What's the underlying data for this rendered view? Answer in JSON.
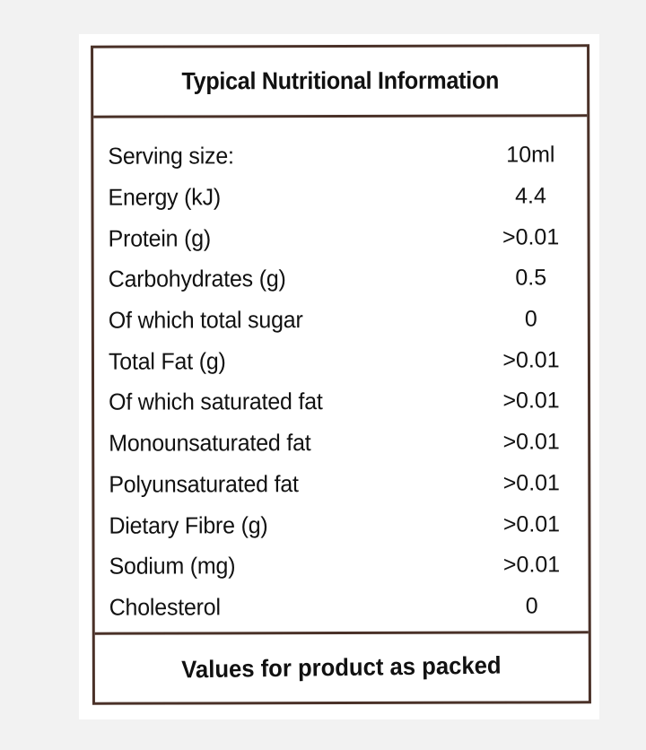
{
  "label": {
    "title": "Typical Nutritional Information",
    "rows": [
      {
        "label": "Serving size:",
        "value": "10ml"
      },
      {
        "label": "Energy (kJ)",
        "value": "4.4"
      },
      {
        "label": "Protein (g)",
        "value": ">0.01"
      },
      {
        "label": "Carbohydrates (g)",
        "value": "0.5"
      },
      {
        "label": "Of which total sugar",
        "value": "0"
      },
      {
        "label": "Total Fat (g)",
        "value": ">0.01"
      },
      {
        "label": "Of which saturated fat",
        "value": ">0.01"
      },
      {
        "label": "Monounsaturated fat",
        "value": ">0.01"
      },
      {
        "label": "Polyunsaturated fat",
        "value": ">0.01"
      },
      {
        "label": "Dietary Fibre (g)",
        "value": ">0.01"
      },
      {
        "label": "Sodium (mg)",
        "value": ">0.01"
      },
      {
        "label": "Cholesterol",
        "value": "0"
      }
    ],
    "footer": "Values for product as packed"
  },
  "colors": {
    "border": "#4a3128",
    "text": "#111111",
    "background": "#f2f2f2"
  }
}
